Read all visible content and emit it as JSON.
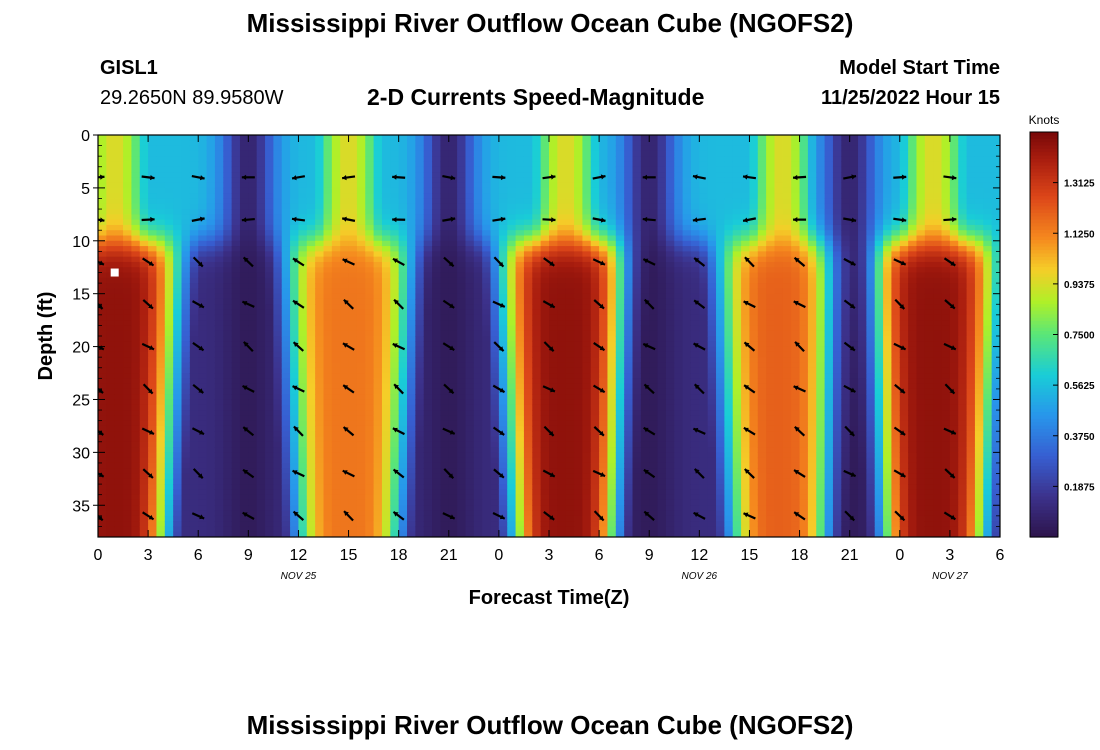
{
  "header": {
    "title": "Mississippi River Outflow Ocean Cube (NGOFS2)",
    "station": "GISL1",
    "coordinates": "29.2650N  89.9580W",
    "subtitle": "2-D Currents Speed-Magnitude",
    "model_start_label": "Model Start Time",
    "model_start_value": "11/25/2022 Hour 15"
  },
  "footer": {
    "title": "Mississippi River Outflow Ocean Cube (NGOFS2)"
  },
  "chart_data": {
    "type": "heatmap",
    "title": "2-D Currents Speed-Magnitude",
    "xlabel": "Forecast Time(Z)",
    "ylabel": "Depth (ft)",
    "xlim": [
      0,
      54
    ],
    "ylim": [
      38,
      0
    ],
    "x_ticks": [
      {
        "hour": 0,
        "label": "0"
      },
      {
        "hour": 3,
        "label": "3"
      },
      {
        "hour": 6,
        "label": "6"
      },
      {
        "hour": 9,
        "label": "9"
      },
      {
        "hour": 12,
        "label": "12"
      },
      {
        "hour": 15,
        "label": "15"
      },
      {
        "hour": 18,
        "label": "18"
      },
      {
        "hour": 21,
        "label": "21"
      },
      {
        "hour": 24,
        "label": "0"
      },
      {
        "hour": 27,
        "label": "3"
      },
      {
        "hour": 30,
        "label": "6"
      },
      {
        "hour": 33,
        "label": "9"
      },
      {
        "hour": 36,
        "label": "12"
      },
      {
        "hour": 39,
        "label": "15"
      },
      {
        "hour": 42,
        "label": "18"
      },
      {
        "hour": 45,
        "label": "21"
      },
      {
        "hour": 48,
        "label": "0"
      },
      {
        "hour": 51,
        "label": "3"
      },
      {
        "hour": 54,
        "label": "6"
      }
    ],
    "date_labels": [
      {
        "hour": 12,
        "label": "NOV 25"
      },
      {
        "hour": 36,
        "label": "NOV 26"
      },
      {
        "hour": 51,
        "label": "NOV 27"
      }
    ],
    "y_ticks": [
      0,
      5,
      10,
      15,
      20,
      25,
      30,
      35
    ],
    "colorbar": {
      "label": "Knots",
      "min": 0.0,
      "max": 1.5,
      "ticks": [
        "1.3125",
        "1.1250",
        "0.9375",
        "0.7500",
        "0.5625",
        "0.3750",
        "0.1875"
      ],
      "tick_values": [
        1.3125,
        1.125,
        0.9375,
        0.75,
        0.5625,
        0.375,
        0.1875
      ]
    },
    "speed_maxima": [
      {
        "center_hour": 1,
        "peak_knots": 1.45
      },
      {
        "center_hour": 15,
        "peak_knots": 1.15
      },
      {
        "center_hour": 28,
        "peak_knots": 1.45
      },
      {
        "center_hour": 41,
        "peak_knots": 1.2
      },
      {
        "center_hour": 50,
        "peak_knots": 1.45
      }
    ],
    "speed_minima_hours": [
      9,
      21,
      33,
      45
    ],
    "vector_depths_ft": [
      4,
      8,
      12,
      16,
      20,
      24,
      28,
      32,
      36
    ],
    "vector_hours": [
      0,
      3,
      6,
      9,
      12,
      15,
      18,
      21,
      24,
      27,
      30,
      33,
      36,
      39,
      42,
      45,
      48,
      51
    ],
    "station_marker": {
      "hour": 1,
      "depth_ft": 13
    }
  }
}
